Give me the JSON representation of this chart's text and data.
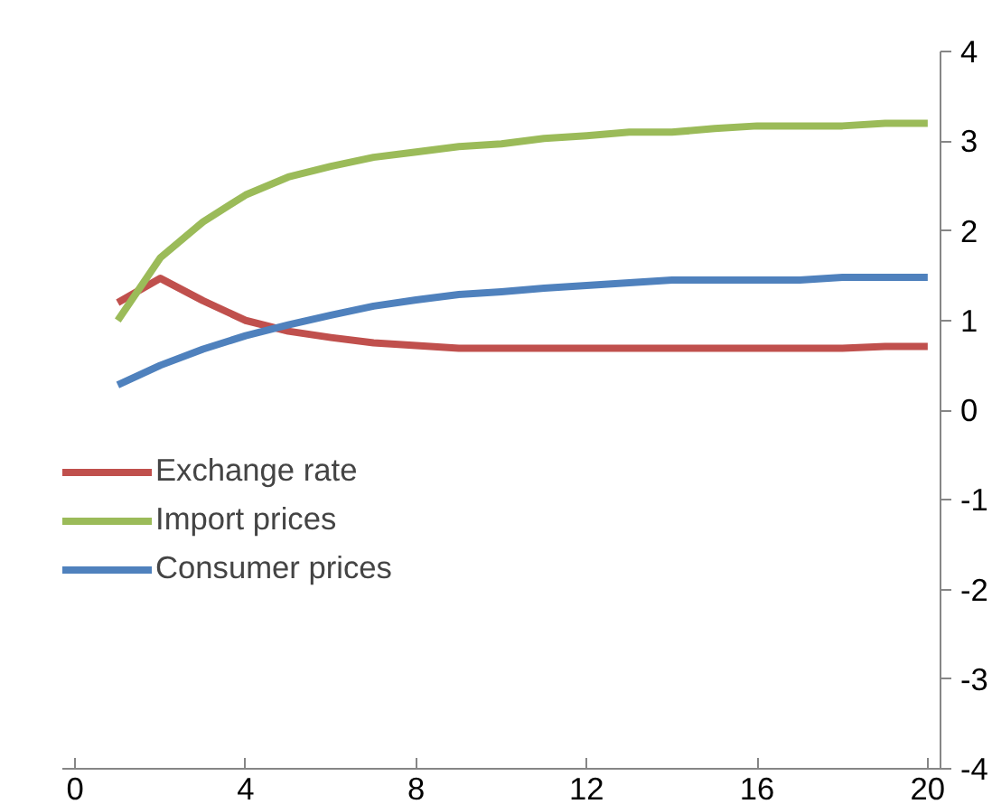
{
  "chart_data": {
    "type": "line",
    "x": [
      1,
      2,
      3,
      4,
      5,
      6,
      7,
      8,
      9,
      10,
      11,
      12,
      13,
      14,
      15,
      16,
      17,
      18,
      19,
      20
    ],
    "series": [
      {
        "name": "Exchange rate",
        "color": "#c0504d",
        "values": [
          1.2,
          1.47,
          1.22,
          1.0,
          0.88,
          0.81,
          0.75,
          0.72,
          0.69,
          0.69,
          0.69,
          0.69,
          0.69,
          0.69,
          0.69,
          0.69,
          0.69,
          0.69,
          0.71,
          0.71
        ]
      },
      {
        "name": "Import prices",
        "color": "#9bbb59",
        "values": [
          1.0,
          1.7,
          2.1,
          2.4,
          2.6,
          2.72,
          2.82,
          2.88,
          2.94,
          2.97,
          3.03,
          3.06,
          3.1,
          3.1,
          3.14,
          3.17,
          3.17,
          3.17,
          3.2,
          3.2
        ]
      },
      {
        "name": "Consumer prices",
        "color": "#4f81bd",
        "values": [
          0.28,
          0.5,
          0.68,
          0.83,
          0.95,
          1.06,
          1.16,
          1.23,
          1.29,
          1.32,
          1.36,
          1.39,
          1.42,
          1.45,
          1.45,
          1.45,
          1.45,
          1.48,
          1.48,
          1.48
        ]
      }
    ],
    "xlim": [
      -0.3,
      20.3
    ],
    "xticks": [
      0,
      4,
      8,
      12,
      16,
      20
    ],
    "ylim": [
      -4,
      4
    ],
    "yticks": [
      -4,
      -3,
      -2,
      -1,
      0,
      1,
      2,
      3,
      4
    ],
    "grid": false,
    "legend": "left",
    "marker": "none",
    "line_style": "solid"
  }
}
